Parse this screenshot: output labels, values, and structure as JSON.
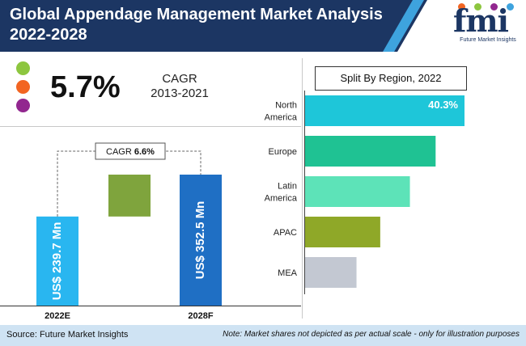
{
  "header": {
    "title": "Global Appendage Management Market Analysis 2022-2028",
    "logo_text": "fmi",
    "logo_subtitle": "Future Market Insights"
  },
  "key_stat": {
    "cagr_value": "5.7%",
    "cagr_label": "CAGR",
    "cagr_period": "2013-2021",
    "dot_colors": [
      "#8dc63f",
      "#f26522",
      "#92278f"
    ]
  },
  "chart_data": [
    {
      "type": "bar",
      "categories": [
        "2022E",
        "2028F"
      ],
      "values": [
        239.7,
        352.5
      ],
      "value_labels": [
        "US$ 239.7 Mn",
        "US$ 352.5 Mn"
      ],
      "colors": [
        "#29b6f0",
        "#1f6fc4"
      ],
      "connector_color": "#7fa43d",
      "annotation_label": "CAGR",
      "annotation_value": "6.6%"
    },
    {
      "type": "bar",
      "orientation": "horizontal",
      "title": "Split By Region, 2022",
      "categories": [
        [
          "North",
          "America"
        ],
        [
          "Europe"
        ],
        [
          "Latin",
          "America"
        ],
        [
          "APAC"
        ],
        [
          "MEA"
        ]
      ],
      "values": [
        40.3,
        33.0,
        26.5,
        19.0,
        13.0
      ],
      "data_labels": [
        "40.3%",
        "",
        "",
        "",
        ""
      ],
      "colors": [
        "#1ec6d9",
        "#1fc293",
        "#5de3b8",
        "#8fa828",
        "#c3c8d2"
      ]
    }
  ],
  "footer": {
    "source": "Source: Future Market Insights",
    "note": "Note: Market shares not depicted as per actual scale - only for illustration purposes"
  }
}
